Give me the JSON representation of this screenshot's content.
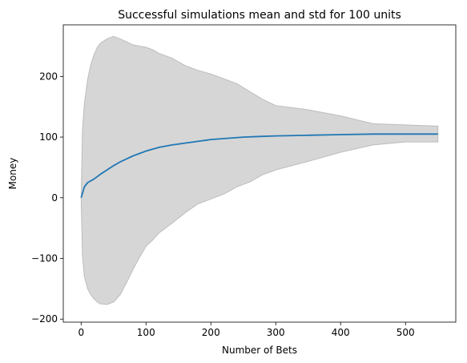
{
  "chart_data": {
    "type": "area",
    "title": "Successful simulations mean and std for 100 units",
    "xlabel": "Number of Bets",
    "ylabel": "Money",
    "xlim": [
      -27.5,
      577.5
    ],
    "ylim": [
      -205,
      285
    ],
    "xticks": [
      0,
      100,
      200,
      300,
      400,
      500
    ],
    "yticks": [
      -200,
      -100,
      0,
      100,
      200
    ],
    "xtick_labels": [
      "0",
      "100",
      "200",
      "300",
      "400",
      "500"
    ],
    "ytick_labels": [
      "−200",
      "−100",
      "0",
      "100",
      "200"
    ],
    "grid": false,
    "colors": {
      "mean_line": "#1f77b4",
      "std_band": "#d6d6d6",
      "std_band_edge": "#bdbdbd"
    },
    "series": [
      {
        "kind": "line",
        "x": [
          0,
          5,
          10,
          20,
          30,
          40,
          50,
          60,
          70,
          80,
          90,
          100,
          120,
          140,
          160,
          180,
          200,
          225,
          250,
          275,
          300,
          350,
          400,
          450,
          500,
          550
        ],
        "values": [
          0,
          18,
          25,
          31,
          39,
          46,
          53,
          59,
          64,
          69,
          73,
          77,
          83,
          87,
          90,
          93,
          96,
          98,
          100,
          101,
          102,
          103,
          104,
          105,
          105,
          105
        ]
      },
      {
        "kind": "band",
        "x": [
          0,
          2,
          5,
          10,
          15,
          20,
          25,
          30,
          40,
          50,
          60,
          70,
          80,
          90,
          100,
          110,
          120,
          140,
          160,
          180,
          200,
          220,
          240,
          260,
          280,
          300,
          350,
          400,
          450,
          500,
          550
        ],
        "upper": [
          0,
          110,
          155,
          195,
          220,
          236,
          248,
          255,
          262,
          266,
          262,
          257,
          252,
          250,
          248,
          244,
          238,
          230,
          218,
          210,
          204,
          196,
          188,
          175,
          162,
          152,
          145,
          135,
          122,
          120,
          118
        ],
        "lower": [
          0,
          -95,
          -130,
          -150,
          -160,
          -167,
          -172,
          -175,
          -176,
          -172,
          -160,
          -140,
          -118,
          -98,
          -80,
          -70,
          -58,
          -42,
          -25,
          -10,
          -2,
          6,
          18,
          26,
          38,
          46,
          60,
          75,
          87,
          92,
          92
        ]
      }
    ]
  }
}
